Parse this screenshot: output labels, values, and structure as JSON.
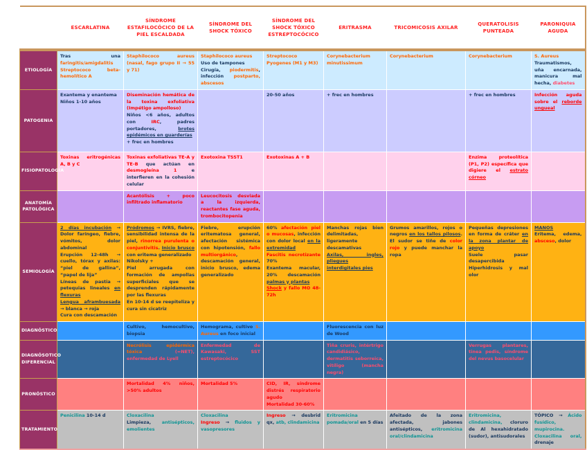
{
  "columns": [
    "ESCARLATINA",
    "SÍNDROME ESTAFILOCÓCICO DE LA PIEL ESCALDADA",
    "SÍNDROME DEL SHOCK TÓXICO",
    "SÍNDROME DEL SHOCK TÓXICO ESTREPTOCÓCICO",
    "ERITRASMA",
    "TRICOMICOSIS AXILAR",
    "QUERATOLISIS PUNTEADA",
    "PARONIQUIA AGUDA"
  ],
  "rows": [
    {
      "label": "ETIOLOGÍA",
      "theme": "etiologia",
      "cells": [
        [
          {
            "t": "Tras una ",
            "s": "dark"
          },
          {
            "t": "faringitis/amigdalitis",
            "s": "orange"
          },
          {
            "t": "\n",
            "s": "dark"
          },
          {
            "t": "Streptococo beta-hemolítico A",
            "s": "orange"
          }
        ],
        [
          {
            "t": "Staphilococo aureus (nasal, fago grupo II → 55 y 71)",
            "s": "orange"
          }
        ],
        [
          {
            "t": "Staphilococo aureus",
            "s": "orange"
          },
          {
            "t": "\nUso de tampones\nCirugía, ",
            "s": "dark"
          },
          {
            "t": "piodermitis",
            "s": "orange"
          },
          {
            "t": ", infección ",
            "s": "dark"
          },
          {
            "t": "postparto, abscesos",
            "s": "orange"
          }
        ],
        [
          {
            "t": "Streptococo Pyogenes (M1 y M3)",
            "s": "orange"
          }
        ],
        [
          {
            "t": "Corynebacterium minutissimum",
            "s": "orange"
          }
        ],
        [
          {
            "t": "Corynebacterium",
            "s": "orange"
          }
        ],
        [
          {
            "t": "Corynebacterium",
            "s": "orange"
          }
        ],
        [
          {
            "t": "S. Aureus",
            "s": "orange"
          },
          {
            "t": "\nTraumatismos, uña encarnada, manicura mal hecha, ",
            "s": "dark"
          },
          {
            "t": "diabetes",
            "s": "crimson"
          }
        ]
      ]
    },
    {
      "label": "PATOGENIA",
      "theme": "patogenia",
      "cells": [
        [
          {
            "t": "Exantema y enantema\nNiños 1-10 años",
            "s": "dark"
          }
        ],
        [
          {
            "t": "Diseminación hemática de la toxina exfoliativa (Impétigo ampolloso)",
            "s": "red"
          },
          {
            "t": "\nNiños <6 años, adultos con ",
            "s": "dark"
          },
          {
            "t": "IRC",
            "s": "red"
          },
          {
            "t": ", padres portadores, ",
            "s": "dark"
          },
          {
            "t": "brotes epidémicos en guarderías",
            "s": "dark",
            "u": true
          },
          {
            "t": "\n+ frec en hombres",
            "s": "dark"
          }
        ],
        [],
        [
          {
            "t": "20-50 años",
            "s": "dark"
          }
        ],
        [
          {
            "t": "+ frec en hombres",
            "s": "dark"
          }
        ],
        [],
        [
          {
            "t": "+ frec en hombres",
            "s": "dark"
          }
        ],
        [
          {
            "t": "Infección aguda sobre el ",
            "s": "red"
          },
          {
            "t": "reborde ungueal",
            "s": "red",
            "u": true
          }
        ]
      ]
    },
    {
      "label": "FISIOPATOLOGÍA",
      "theme": "fisiopatologia",
      "cells": [
        [
          {
            "t": "Toxinas eritrogénicas A, B y C",
            "s": "red"
          }
        ],
        [
          {
            "t": "Toxinas exfoliativas TE-A y TE-B ",
            "s": "red"
          },
          {
            "t": "que actúan en ",
            "s": "dark"
          },
          {
            "t": "desmogleína 1",
            "s": "red"
          },
          {
            "t": " e interfieren en la cohesión celular",
            "s": "dark"
          }
        ],
        [
          {
            "t": "Exotoxina TSST1",
            "s": "red"
          }
        ],
        [
          {
            "t": "Exotoxinas A + B",
            "s": "red"
          }
        ],
        [],
        [],
        [
          {
            "t": "Enzima proteolítica (P1, P2) específica que digiere el ",
            "s": "red"
          },
          {
            "t": "estrato córneo",
            "s": "red",
            "u": true
          }
        ],
        []
      ]
    },
    {
      "label": "ANATOMÍA PATOLÓGICA",
      "theme": "anatomia",
      "cells": [
        [],
        [
          {
            "t": "Acantólisis + poco infiltrado inflamatorio",
            "s": "red"
          }
        ],
        [
          {
            "t": "Leucocitosis desviada a la izquierda, reactantes fase aguda, trombocitopenia",
            "s": "red"
          }
        ],
        [],
        [],
        [],
        [],
        []
      ]
    },
    {
      "label": "SEMIOLOGÍA",
      "theme": "semiologia",
      "cells": [
        [
          {
            "t": "2 días incubación",
            "s": "dark",
            "u": true
          },
          {
            "t": " → Dolor faríngeo, fiebre, vómitos, dolor abdominal\nErupción 12-48h → cuello, tórax y axilas: “piel de gallina”, “papel de lija”\nLíneas de pastia → petequias lineales ",
            "s": "dark"
          },
          {
            "t": "en flexuras",
            "s": "dark",
            "u": true
          },
          {
            "t": "\n",
            "s": "dark"
          },
          {
            "t": "Lengua aframbuesada",
            "s": "dark",
            "u": true
          },
          {
            "t": " → blanca → roja\nCura con descamación",
            "s": "dark"
          }
        ],
        [
          {
            "t": "Pródromos",
            "s": "dark",
            "u": true
          },
          {
            "t": " → IVRS, fiebre, sensibilidad intensa de la piel, ",
            "s": "dark"
          },
          {
            "t": "rinorrea purulenta o conjuntivitis",
            "s": "red"
          },
          {
            "t": ". ",
            "s": "dark"
          },
          {
            "t": "Inicio brusco",
            "s": "dark",
            "u": true
          },
          {
            "t": " con eritema generalizado\nNikolsky +\nPiel arrugada con formación de ampollas superficiales que se desprenden rápidamente por las flexuras\nEn 10-14 d se reepiteliza y cura sin cicatriz",
            "s": "dark"
          }
        ],
        [
          {
            "t": "Fiebre, erupción eritematosa general, afectación sistémica con hipotensión, ",
            "s": "dark"
          },
          {
            "t": "fallo multiorgánico",
            "s": "red"
          },
          {
            "t": ", descamación general, inicio brusco, edema generalizado",
            "s": "dark"
          }
        ],
        [
          {
            "t": "60% ",
            "s": "dark"
          },
          {
            "t": "afectación piel o mucosas",
            "s": "red"
          },
          {
            "t": ", infección con dolor local ",
            "s": "dark"
          },
          {
            "t": "en la extremidad",
            "s": "dark",
            "u": true
          },
          {
            "t": "\n",
            "s": "dark"
          },
          {
            "t": "Fascitis necrotizante",
            "s": "red"
          },
          {
            "t": " 70%\nExantema macular, 20% descamación ",
            "s": "dark"
          },
          {
            "t": "palmas y plantas",
            "s": "dark",
            "u": true
          },
          {
            "t": "\n",
            "s": "dark"
          },
          {
            "t": "Shock",
            "s": "red",
            "u": true
          },
          {
            "t": " y fallo MO 48-72h",
            "s": "red"
          }
        ],
        [
          {
            "t": "Manchas rojas bien delimitadas, ligeramente descamativas\n",
            "s": "dark"
          },
          {
            "t": "Axilas, ingles, pliegues interdigitales pies",
            "s": "dark",
            "u": true
          }
        ],
        [
          {
            "t": "Grumos amarillos, rojos o negros ",
            "s": "dark"
          },
          {
            "t": "en los tallos pilosos",
            "s": "dark",
            "u": true
          },
          {
            "t": ". El sudor se tiñe de ",
            "s": "dark"
          },
          {
            "t": "color rojo",
            "s": "red"
          },
          {
            "t": " y puede manchar la ropa",
            "s": "dark"
          }
        ],
        [
          {
            "t": "Pequeñas depresiones en forma de cráter ",
            "s": "dark"
          },
          {
            "t": "en la zona plantar de apoyo",
            "s": "dark",
            "u": true
          },
          {
            "t": "\nSuele pasar desapercibida\nHiperhidrosis y mal olor",
            "s": "dark"
          }
        ],
        [
          {
            "t": "MANOS",
            "s": "dark",
            "u": true
          },
          {
            "t": "\nEritema, edema, ",
            "s": "dark"
          },
          {
            "t": "absceso",
            "s": "red"
          },
          {
            "t": ", dolor",
            "s": "dark"
          }
        ]
      ]
    },
    {
      "label": "DIAGNÓSTICO",
      "theme": "diagnostico",
      "cells": [
        [],
        [
          {
            "t": "Cultivo, hemocultivo, biopsia",
            "s": "dark"
          }
        ],
        [
          {
            "t": "Hemograma, cultivo ",
            "s": "dark"
          },
          {
            "t": "S. Aureus",
            "s": "orange"
          },
          {
            "t": " en foco inicial",
            "s": "dark"
          }
        ],
        [],
        [
          {
            "t": "Fluorescencia con luz de Wood",
            "s": "dark"
          }
        ],
        [],
        [],
        []
      ]
    },
    {
      "label": "DIAGNÓSOTICO DIFERENCIAL",
      "theme": "diferencial",
      "cells": [
        [],
        [
          {
            "t": "Necrólisis epidérmica tóxica ",
            "s": "orange"
          },
          {
            "t": "(=NET), enfermedad de Lyell",
            "s": "crimson"
          }
        ],
        [
          {
            "t": "Enfermedad de Kawasaki, SST estreptocócico",
            "s": "crimson"
          }
        ],
        [],
        [
          {
            "t": "Tiña cruris, intértrigo candidiásico, dermatitis seborreica, vitíligo (mancha negra)",
            "s": "crimson"
          }
        ],
        [],
        [
          {
            "t": "Verrugas plantares, tinea pedis, síndrome del nevus basocelular",
            "s": "crimson"
          }
        ],
        []
      ]
    },
    {
      "label": "PRONÓSTICO",
      "theme": "pronostico",
      "cells": [
        [],
        [
          {
            "t": "Mortalidad 4% niños, >50% adultos",
            "s": "red"
          }
        ],
        [
          {
            "t": "Mortalidad 5%",
            "s": "red"
          }
        ],
        [
          {
            "t": "CID, IR, síndrome distrés respiratorio agudo\nMortalidad 30-60%",
            "s": "red"
          }
        ],
        [],
        [],
        [],
        []
      ]
    },
    {
      "label": "TRATAMIENTO",
      "theme": "tratamiento",
      "cells": [
        [
          {
            "t": "Penicilina",
            "s": "teal"
          },
          {
            "t": " 10-14 d",
            "s": "dark"
          }
        ],
        [
          {
            "t": "Cloxacilina",
            "s": "teal"
          },
          {
            "t": "\nLimpieza, ",
            "s": "dark"
          },
          {
            "t": "antisépticos, emolientes",
            "s": "teal"
          }
        ],
        [
          {
            "t": "Cloxacilina",
            "s": "teal"
          },
          {
            "t": "\n",
            "s": "dark"
          },
          {
            "t": "Ingreso",
            "s": "red"
          },
          {
            "t": " → ",
            "s": "dark"
          },
          {
            "t": "fluidos y vasopresores",
            "s": "teal"
          }
        ],
        [
          {
            "t": "Ingreso",
            "s": "red"
          },
          {
            "t": " → desbrid qx, ",
            "s": "dark"
          },
          {
            "t": "atb, clindamicina",
            "s": "teal"
          }
        ],
        [
          {
            "t": "Eritromicina pomada/oral ",
            "s": "teal"
          },
          {
            "t": "en 5 días",
            "s": "dark"
          }
        ],
        [
          {
            "t": "Afeitado de la zona afectada, jabones antisépticos, ",
            "s": "dark"
          },
          {
            "t": "eritromicina oral/clindamicina",
            "s": "teal"
          }
        ],
        [
          {
            "t": "Eritromicina, clindamicina, ",
            "s": "teal"
          },
          {
            "t": "cloruro de Al hexahidratado (sudor), antisudorales",
            "s": "dark"
          }
        ],
        [
          {
            "t": "TÓPICO → ",
            "s": "dark"
          },
          {
            "t": "Ácido fusídico, mupirocina. Cloxacilina oral, ",
            "s": "teal"
          },
          {
            "t": "drenaje",
            "s": "dark"
          }
        ]
      ]
    }
  ],
  "colors": {
    "header_text": "#FF2020",
    "label_bg": "#993366",
    "label_text": "#FFFFFF",
    "divider_tan": "#C9965C",
    "row_bg": {
      "etiologia": "#CDEBFF",
      "patogenia": "#CCCCFF",
      "fisiopatologia": "#FFD1EC",
      "anatomia": "#C79CF2",
      "semiologia": "#FFB213",
      "diagnostico": "#3399FF",
      "diferencial": "#35689A",
      "pronostico": "#FF8080",
      "tratamiento": "#C0C0C0"
    },
    "text": {
      "dark": "#17375E",
      "orange": "#FF6600",
      "red": "#FF0000",
      "teal": "#0E9494",
      "crimson": "#FF4D6D"
    }
  }
}
